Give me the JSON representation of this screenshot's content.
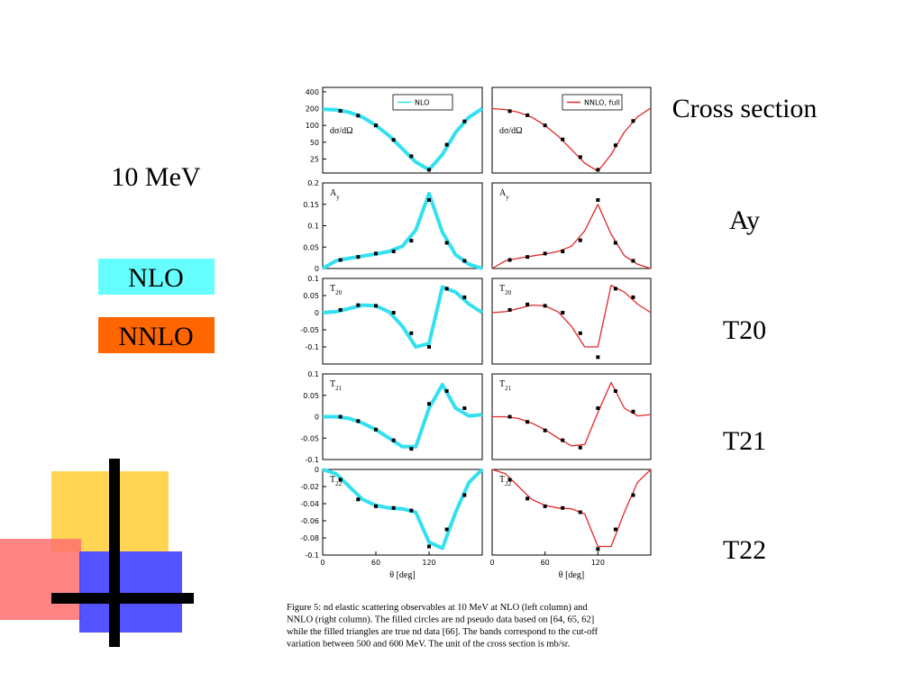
{
  "slide": {
    "energy": "10 MeV",
    "legend": [
      {
        "label": "NLO",
        "color": "#66ffff"
      },
      {
        "label": "NNLO",
        "color": "#ff6600"
      }
    ],
    "observables": [
      "Cross section",
      "Ay",
      "T20",
      "T21",
      "T22"
    ]
  },
  "chart_data": [
    {
      "type": "line",
      "label": [
        "dσ/dΩ"
      ],
      "log": true,
      "x": [
        0,
        15,
        30,
        45,
        60,
        75,
        90,
        105,
        120,
        135,
        150,
        165,
        180
      ],
      "xlim": [
        0,
        180
      ],
      "ylim": [
        14,
        480
      ],
      "yticks": [
        400,
        200,
        100,
        50,
        25
      ],
      "series": [
        {
          "name": "NLO",
          "color": "#33e0f0",
          "values": [
            195,
            190,
            172,
            140,
            100,
            65,
            38,
            22,
            16,
            30,
            75,
            140,
            200
          ]
        },
        {
          "type": "scatter",
          "color": "#000000",
          "x": [
            20,
            40,
            60,
            80,
            100,
            120,
            140,
            160
          ],
          "values": [
            182,
            150,
            100,
            55,
            28,
            16,
            45,
            118
          ]
        }
      ]
    },
    {
      "type": "line",
      "label": [
        "dσ/dΩ"
      ],
      "log": true,
      "x": [
        0,
        15,
        30,
        45,
        60,
        75,
        90,
        105,
        120,
        135,
        150,
        165,
        180
      ],
      "xlim": [
        0,
        180
      ],
      "ylim": [
        14,
        480
      ],
      "series": [
        {
          "name": "NNLO, full",
          "color": "#e02828",
          "values": [
            200,
            192,
            172,
            140,
            100,
            64,
            37,
            21,
            15,
            30,
            76,
            142,
            205
          ]
        },
        {
          "type": "scatter",
          "color": "#000000",
          "x": [
            20,
            40,
            60,
            80,
            100,
            120,
            140,
            160
          ],
          "values": [
            180,
            152,
            100,
            56,
            27,
            16,
            44,
            120
          ]
        }
      ]
    },
    {
      "type": "line",
      "label": [
        "A",
        "y"
      ],
      "x": [
        0,
        15,
        30,
        45,
        60,
        75,
        90,
        105,
        120,
        135,
        150,
        165,
        180
      ],
      "xlim": [
        0,
        180
      ],
      "ylim": [
        0,
        0.2
      ],
      "yticks": [
        0.2,
        0.15,
        0.1,
        0.05,
        0
      ],
      "series": [
        {
          "color": "#33e0f0",
          "values": [
            0,
            0.018,
            0.024,
            0.029,
            0.034,
            0.04,
            0.052,
            0.09,
            0.175,
            0.085,
            0.032,
            0.01,
            0
          ]
        },
        {
          "type": "scatter",
          "color": "#000000",
          "x": [
            20,
            40,
            60,
            80,
            100,
            120,
            140,
            160
          ],
          "values": [
            0.02,
            0.027,
            0.035,
            0.04,
            0.065,
            0.16,
            0.06,
            0.018
          ]
        }
      ]
    },
    {
      "type": "line",
      "label": [
        "A",
        "y"
      ],
      "x": [
        0,
        15,
        30,
        45,
        60,
        75,
        90,
        105,
        120,
        135,
        150,
        165,
        180
      ],
      "xlim": [
        0,
        180
      ],
      "ylim": [
        0,
        0.2
      ],
      "series": [
        {
          "color": "#e02828",
          "values": [
            0,
            0.018,
            0.024,
            0.029,
            0.034,
            0.04,
            0.052,
            0.088,
            0.15,
            0.08,
            0.03,
            0.01,
            0
          ]
        },
        {
          "type": "scatter",
          "color": "#000000",
          "x": [
            20,
            40,
            60,
            80,
            100,
            120,
            140,
            160
          ],
          "values": [
            0.02,
            0.027,
            0.035,
            0.04,
            0.066,
            0.16,
            0.06,
            0.018
          ]
        }
      ]
    },
    {
      "type": "line",
      "label": [
        "T",
        "20"
      ],
      "x": [
        0,
        15,
        30,
        45,
        60,
        75,
        90,
        105,
        120,
        135,
        150,
        165,
        180
      ],
      "xlim": [
        0,
        180
      ],
      "ylim": [
        -0.15,
        0.1
      ],
      "yticks": [
        0.1,
        0.05,
        0,
        -0.05,
        -0.1
      ],
      "series": [
        {
          "color": "#33e0f0",
          "values": [
            0,
            0.003,
            0.012,
            0.022,
            0.02,
            0.002,
            -0.04,
            -0.1,
            -0.09,
            0.075,
            0.06,
            0.025,
            0
          ]
        },
        {
          "type": "scatter",
          "color": "#000000",
          "x": [
            20,
            40,
            60,
            80,
            100,
            120,
            140,
            160
          ],
          "values": [
            0.008,
            0.022,
            0.02,
            0.0,
            -0.06,
            -0.1,
            0.07,
            0.045
          ]
        }
      ]
    },
    {
      "type": "line",
      "label": [
        "T",
        "20"
      ],
      "x": [
        0,
        15,
        30,
        45,
        60,
        75,
        90,
        105,
        120,
        135,
        150,
        165,
        180
      ],
      "xlim": [
        0,
        180
      ],
      "ylim": [
        -0.15,
        0.1
      ],
      "series": [
        {
          "color": "#e02828",
          "values": [
            0,
            0.003,
            0.012,
            0.022,
            0.02,
            0.002,
            -0.04,
            -0.1,
            -0.1,
            0.08,
            0.06,
            0.025,
            0
          ]
        },
        {
          "type": "scatter",
          "color": "#000000",
          "x": [
            20,
            40,
            60,
            80,
            100,
            120,
            140,
            160
          ],
          "values": [
            0.008,
            0.024,
            0.02,
            0.0,
            -0.06,
            -0.13,
            0.07,
            0.045
          ]
        }
      ]
    },
    {
      "type": "line",
      "label": [
        "T",
        "21"
      ],
      "x": [
        0,
        15,
        30,
        45,
        60,
        75,
        90,
        105,
        120,
        135,
        150,
        165,
        180
      ],
      "xlim": [
        0,
        180
      ],
      "ylim": [
        -0.1,
        0.1
      ],
      "yticks": [
        0.1,
        0.05,
        0,
        -0.05,
        -0.1
      ],
      "series": [
        {
          "color": "#33e0f0",
          "values": [
            0,
            0,
            -0.004,
            -0.015,
            -0.03,
            -0.05,
            -0.07,
            -0.07,
            0.02,
            0.075,
            0.02,
            0.002,
            0.005
          ]
        },
        {
          "type": "scatter",
          "color": "#000000",
          "x": [
            20,
            40,
            60,
            80,
            100,
            120,
            140,
            160
          ],
          "values": [
            0,
            -0.01,
            -0.03,
            -0.055,
            -0.075,
            0.03,
            0.06,
            0.02
          ]
        }
      ]
    },
    {
      "type": "line",
      "label": [
        "T",
        "21"
      ],
      "x": [
        0,
        15,
        30,
        45,
        60,
        75,
        90,
        105,
        120,
        135,
        150,
        165,
        180
      ],
      "xlim": [
        0,
        180
      ],
      "ylim": [
        -0.1,
        0.1
      ],
      "series": [
        {
          "color": "#e02828",
          "values": [
            0,
            0,
            -0.004,
            -0.015,
            -0.03,
            -0.05,
            -0.068,
            -0.065,
            0.01,
            0.08,
            0.02,
            0.002,
            0.005
          ]
        },
        {
          "type": "scatter",
          "color": "#000000",
          "x": [
            20,
            40,
            60,
            80,
            100,
            120,
            140,
            160
          ],
          "values": [
            0,
            -0.012,
            -0.032,
            -0.055,
            -0.072,
            0.02,
            0.06,
            0.012
          ]
        }
      ]
    },
    {
      "type": "line",
      "label": [
        "T",
        "22"
      ],
      "x": [
        0,
        15,
        30,
        45,
        60,
        75,
        90,
        105,
        120,
        135,
        150,
        165,
        180
      ],
      "xlim": [
        0,
        180
      ],
      "ylim": [
        -0.1,
        0
      ],
      "yticks": [
        0,
        -0.02,
        -0.04,
        -0.06,
        -0.08,
        -0.1
      ],
      "xticks": [
        0,
        60,
        120
      ],
      "xlabel": "θ [deg]",
      "series": [
        {
          "color": "#33e0f0",
          "values": [
            0,
            -0.005,
            -0.02,
            -0.035,
            -0.042,
            -0.045,
            -0.046,
            -0.05,
            -0.085,
            -0.092,
            -0.05,
            -0.015,
            0
          ]
        },
        {
          "type": "scatter",
          "color": "#000000",
          "x": [
            20,
            40,
            60,
            80,
            100,
            120,
            140,
            160
          ],
          "values": [
            -0.012,
            -0.035,
            -0.043,
            -0.045,
            -0.048,
            -0.09,
            -0.07,
            -0.03
          ]
        }
      ]
    },
    {
      "type": "line",
      "label": [
        "T",
        "22"
      ],
      "x": [
        0,
        15,
        30,
        45,
        60,
        75,
        90,
        105,
        120,
        135,
        150,
        165,
        180
      ],
      "xlim": [
        0,
        180
      ],
      "ylim": [
        -0.1,
        0
      ],
      "xticks": [
        0,
        60,
        120
      ],
      "xlabel": "θ [deg]",
      "series": [
        {
          "color": "#e02828",
          "values": [
            0,
            -0.005,
            -0.02,
            -0.035,
            -0.042,
            -0.045,
            -0.046,
            -0.052,
            -0.09,
            -0.09,
            -0.05,
            -0.015,
            0
          ]
        },
        {
          "type": "scatter",
          "color": "#000000",
          "x": [
            20,
            40,
            60,
            80,
            100,
            120,
            140,
            160
          ],
          "values": [
            -0.012,
            -0.034,
            -0.043,
            -0.045,
            -0.05,
            -0.093,
            -0.07,
            -0.03
          ]
        }
      ]
    }
  ],
  "caption": [
    "Figure 5:  nd elastic scattering observables at 10 MeV at NLO (left column) and",
    "NNLO (right column).  The filled circles are nd pseudo data based on [64, 65, 62]",
    "while the filled triangles are true nd data [66]. The bands correspond to the cut-off",
    "variation between 500 and 600 MeV. The unit of the cross section is mb/sr."
  ]
}
